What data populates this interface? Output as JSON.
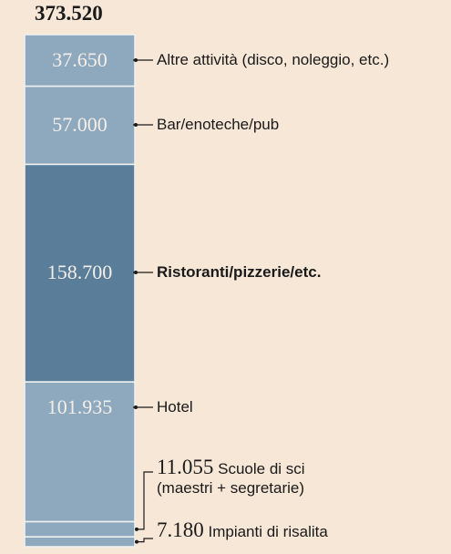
{
  "chart_data": {
    "type": "stacked-column",
    "title": "373.520",
    "categories": [
      "Altre attività (disco, noleggio, etc.)",
      "Bar/enoteche/pub",
      "Ristoranti/pizzerie/etc.",
      "Hotel",
      "Scuole di sci (maestri + segretarie)",
      "Impianti di risalita"
    ],
    "values": [
      37650,
      57000,
      158700,
      101935,
      11055,
      7180
    ],
    "value_labels": [
      "37.650",
      "57.000",
      "158.700",
      "101.935",
      "11.055",
      "7.180"
    ],
    "colors": [
      "#8ea8bd",
      "#8ea8bd",
      "#5a7e9a",
      "#8ea8bd",
      "#8ea8bd",
      "#8ea8bd"
    ]
  }
}
